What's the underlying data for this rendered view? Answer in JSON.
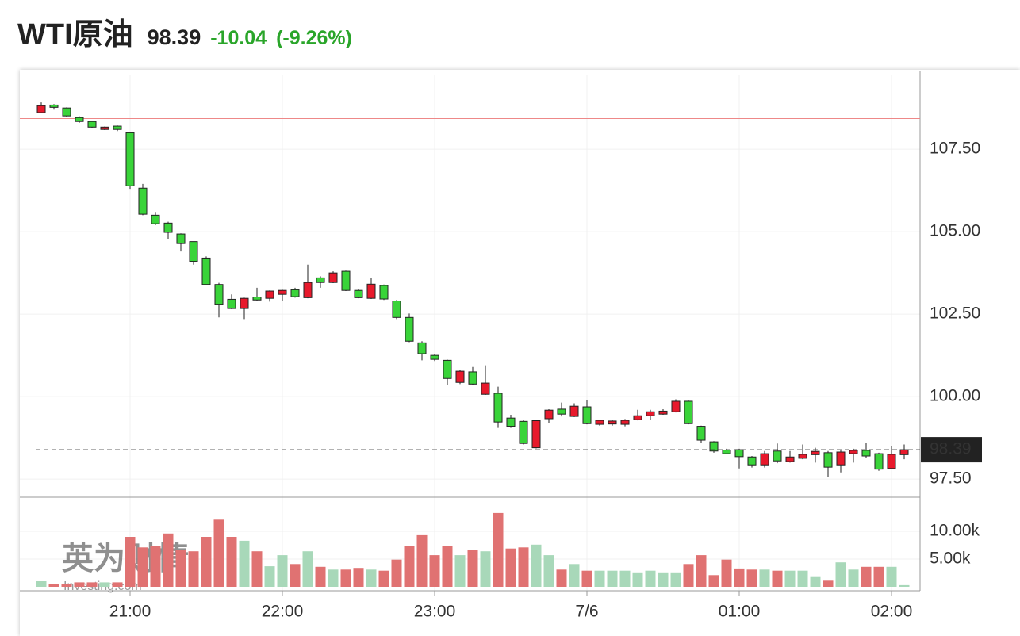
{
  "chart_data": {
    "type": "candlestick",
    "title": "WTI原油",
    "change": -10.04,
    "change_pct": "(-9.26%)",
    "prev_close": 108.43,
    "watermark": [
      "英为财情",
      "Investing.com"
    ],
    "categories": [
      null,
      null,
      null,
      null,
      null,
      null,
      null,
      "21:00",
      null,
      null,
      null,
      null,
      null,
      null,
      null,
      null,
      null,
      null,
      null,
      "22:00",
      null,
      null,
      null,
      null,
      null,
      null,
      null,
      null,
      null,
      null,
      null,
      "23:00",
      null,
      null,
      null,
      null,
      null,
      null,
      null,
      null,
      null,
      null,
      null,
      "7/6",
      null,
      null,
      null,
      null,
      null,
      null,
      null,
      null,
      null,
      null,
      null,
      "01:00",
      null,
      null,
      null,
      null,
      null,
      null,
      null,
      null,
      null,
      null,
      null,
      "02:00",
      null
    ],
    "open": [
      108.61,
      108.84,
      108.75,
      108.46,
      108.34,
      108.1,
      108.2,
      108.0,
      106.32,
      105.5,
      105.26,
      104.93,
      104.7,
      104.2,
      103.4,
      102.95,
      102.67,
      103.02,
      102.98,
      103.1,
      103.24,
      103.0,
      103.6,
      103.46,
      103.8,
      103.22,
      102.98,
      103.37,
      102.9,
      102.4,
      101.63,
      101.25,
      101.1,
      100.43,
      100.75,
      100.07,
      100.1,
      99.35,
      99.25,
      98.45,
      99.33,
      99.62,
      99.4,
      99.69,
      99.16,
      99.17,
      99.16,
      99.3,
      99.42,
      99.47,
      99.54,
      99.86,
      99.1,
      98.63,
      98.38,
      98.39,
      98.17,
      97.93,
      98.35,
      98.03,
      98.13,
      98.24,
      98.3,
      97.93,
      98.27,
      98.37,
      98.27,
      97.82,
      98.24
    ],
    "high": [
      108.92,
      108.87,
      108.77,
      108.5,
      108.36,
      108.19,
      108.22,
      108.02,
      106.45,
      105.6,
      105.3,
      104.95,
      104.7,
      104.25,
      103.45,
      103.1,
      103.0,
      103.3,
      103.22,
      103.24,
      103.3,
      104.0,
      103.65,
      103.8,
      103.82,
      103.25,
      103.6,
      103.4,
      102.93,
      102.52,
      101.68,
      101.3,
      101.12,
      100.8,
      100.9,
      100.95,
      100.3,
      99.45,
      99.3,
      99.3,
      99.62,
      99.82,
      99.8,
      99.9,
      99.3,
      99.3,
      99.32,
      99.6,
      99.6,
      99.62,
      99.92,
      99.88,
      99.12,
      98.65,
      98.42,
      98.42,
      98.2,
      98.35,
      98.58,
      98.35,
      98.55,
      98.45,
      98.35,
      98.38,
      98.42,
      98.6,
      98.3,
      98.5,
      98.55
    ],
    "low": [
      108.59,
      108.7,
      108.48,
      108.3,
      108.14,
      108.08,
      108.05,
      106.3,
      105.5,
      105.2,
      104.78,
      104.4,
      104.0,
      103.38,
      102.4,
      102.65,
      102.35,
      102.9,
      102.88,
      102.9,
      103.0,
      102.98,
      103.3,
      103.44,
      103.2,
      102.98,
      102.96,
      102.93,
      102.35,
      101.65,
      101.1,
      101.08,
      100.35,
      100.38,
      100.35,
      100.05,
      99.05,
      99.05,
      98.55,
      98.43,
      99.2,
      99.4,
      99.38,
      99.16,
      99.12,
      99.12,
      99.1,
      99.28,
      99.3,
      99.45,
      99.52,
      99.16,
      98.6,
      98.3,
      98.25,
      97.82,
      97.85,
      97.85,
      97.98,
      98.0,
      98.1,
      98.0,
      97.55,
      97.7,
      98.0,
      98.15,
      97.75,
      97.8,
      98.1
    ],
    "close": [
      108.82,
      108.77,
      108.51,
      108.34,
      108.17,
      108.17,
      108.1,
      106.39,
      105.53,
      105.24,
      104.98,
      104.64,
      104.1,
      103.4,
      102.8,
      102.67,
      102.98,
      102.93,
      103.2,
      103.22,
      103.03,
      103.46,
      103.46,
      103.75,
      103.22,
      103.0,
      103.41,
      102.96,
      102.4,
      101.68,
      101.3,
      101.13,
      100.55,
      100.77,
      100.38,
      100.41,
      99.23,
      99.1,
      98.58,
      99.27,
      99.59,
      99.47,
      99.71,
      99.18,
      99.28,
      99.26,
      99.28,
      99.42,
      99.54,
      99.56,
      99.86,
      99.18,
      98.68,
      98.35,
      98.27,
      98.18,
      97.93,
      98.27,
      98.05,
      98.17,
      98.25,
      98.34,
      97.86,
      98.32,
      98.37,
      98.2,
      97.8,
      98.25,
      98.39
    ],
    "up_color": "#e8192c",
    "down_color": "#39d439",
    "ylim": [
      96.95,
      109.74
    ],
    "yticks": [
      {
        "value": 97.5,
        "label": "97.50"
      },
      {
        "value": 100,
        "label": "100.00"
      },
      {
        "value": 102.5,
        "label": "102.50"
      },
      {
        "value": 105,
        "label": "105.00"
      },
      {
        "value": 107.5,
        "label": "107.50"
      }
    ],
    "grid": true,
    "volume": {
      "values": [
        1000,
        500,
        500,
        800,
        800,
        800,
        800,
        9000,
        7100,
        7400,
        9600,
        6700,
        6400,
        9000,
        12100,
        9000,
        8300,
        6400,
        3700,
        5700,
        4100,
        6400,
        3600,
        3100,
        3100,
        3400,
        3100,
        2900,
        4900,
        7300,
        9300,
        5700,
        7300,
        5700,
        6700,
        6400,
        13300,
        6900,
        7100,
        7600,
        5700,
        3100,
        4100,
        2900,
        2900,
        2900,
        2900,
        2600,
        2900,
        2600,
        2600,
        4100,
        5700,
        2100,
        4900,
        3300,
        3100,
        3100,
        2900,
        2900,
        2900,
        1900,
        1100,
        4400,
        3100,
        3600,
        3600,
        3600,
        300
      ],
      "up_color": "#a8d8b9",
      "down_color": "#e07272",
      "ylim": [
        0,
        16000
      ],
      "yticks": [
        {
          "value": 5000,
          "label": "5.00k"
        },
        {
          "value": 10000,
          "label": "10.00k"
        }
      ]
    }
  }
}
